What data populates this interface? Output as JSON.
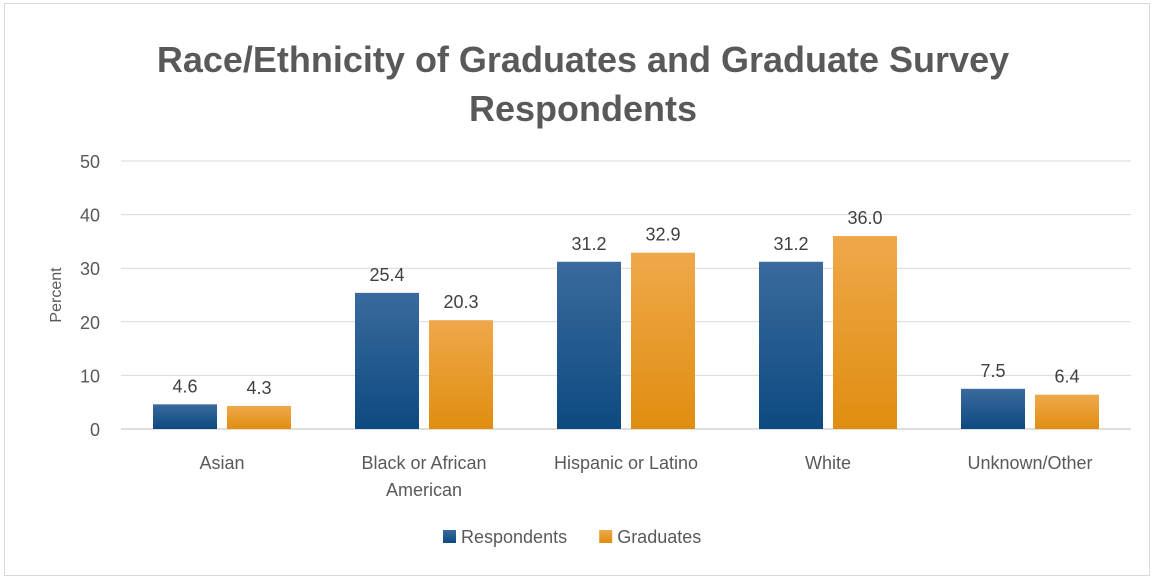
{
  "chart_data": {
    "type": "bar",
    "title_lines": [
      "Race/Ethnicity of Graduates and Graduate Survey",
      "Respondents"
    ],
    "xlabel": "",
    "ylabel": "Percent",
    "ylim": [
      0,
      50
    ],
    "yticks": [
      0,
      10,
      20,
      30,
      40,
      50
    ],
    "grid": true,
    "legend_position": "bottom",
    "categories": [
      [
        "Asian"
      ],
      [
        "Black or African",
        "American"
      ],
      [
        "Hispanic or Latino"
      ],
      [
        "White"
      ],
      [
        "Unknown/Other"
      ]
    ],
    "series": [
      {
        "name": "Respondents",
        "values": [
          4.6,
          25.4,
          31.2,
          31.2,
          7.5
        ],
        "labels": [
          "4.6",
          "25.4",
          "31.2",
          "31.2",
          "7.5"
        ],
        "color_top": "#3a6a9e",
        "color_bottom": "#0d4a80"
      },
      {
        "name": "Graduates",
        "values": [
          4.3,
          20.3,
          32.9,
          36.0,
          6.4
        ],
        "labels": [
          "4.3",
          "20.3",
          "32.9",
          "36.0",
          "6.4"
        ],
        "color_top": "#efa84a",
        "color_bottom": "#e08e10"
      }
    ]
  }
}
